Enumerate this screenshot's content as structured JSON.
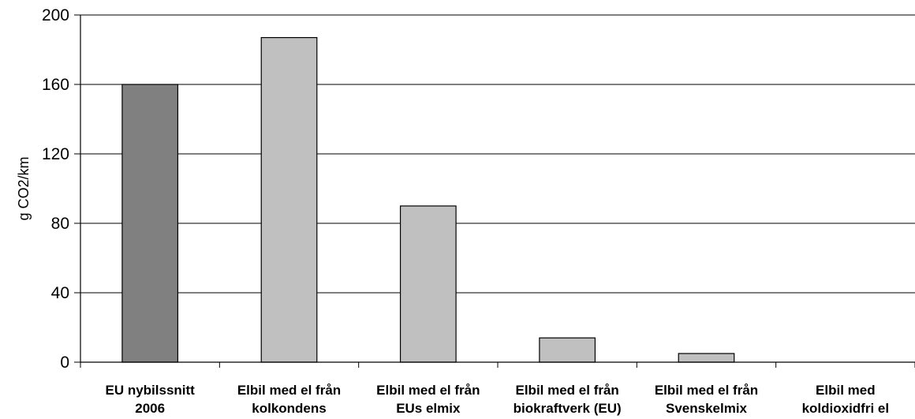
{
  "chart_data": {
    "type": "bar",
    "title": "",
    "xlabel": "",
    "ylabel": "g CO2/km",
    "ylim": [
      0,
      200
    ],
    "yticks": [
      0,
      40,
      80,
      120,
      160,
      200
    ],
    "grid": true,
    "legend": "none",
    "categories": [
      [
        "EU nybilssnitt",
        "2006"
      ],
      [
        "Elbil med el från",
        "kolkondens"
      ],
      [
        "Elbil med el från",
        "EUs elmix"
      ],
      [
        "Elbil med el från",
        "biokraftverk (EU)"
      ],
      [
        "Elbil med el från",
        "Svenskelmix"
      ],
      [
        "Elbil med",
        "koldioxidfri el"
      ]
    ],
    "values": [
      160,
      187,
      90,
      14,
      5,
      0
    ],
    "colors": {
      "highlight": "#808080",
      "default": "#c0c0c0",
      "outline": "#000000",
      "grid": "#000000"
    },
    "highlight_index": 0
  }
}
